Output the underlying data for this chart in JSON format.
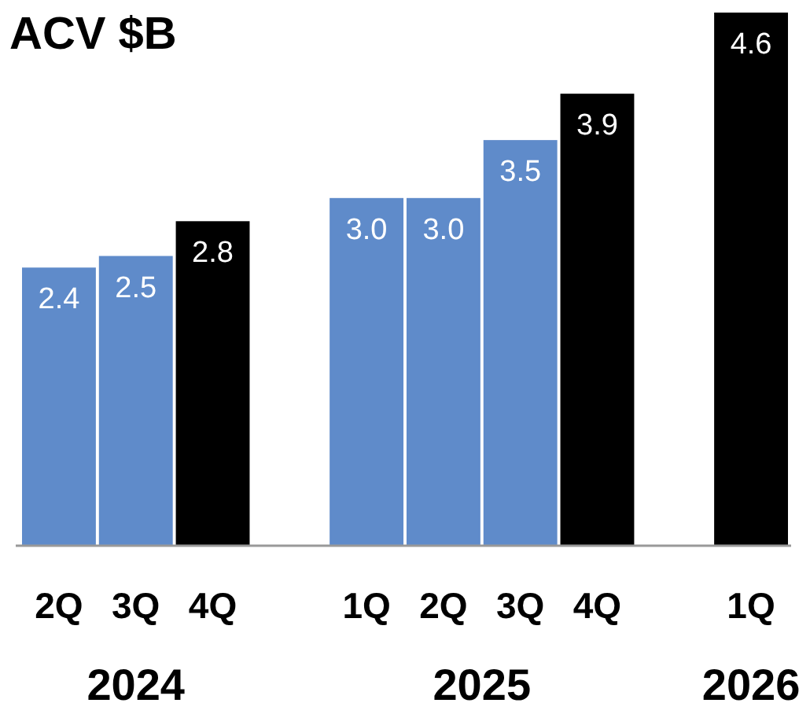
{
  "chart_data": {
    "type": "bar",
    "title": "ACV $B",
    "categories": [
      "2Q",
      "3Q",
      "4Q",
      null,
      "1Q",
      "2Q",
      "3Q",
      "4Q",
      null,
      "1Q"
    ],
    "values": [
      2.4,
      2.5,
      2.8,
      null,
      3.0,
      3.0,
      3.5,
      3.9,
      null,
      4.6
    ],
    "value_labels": [
      "2.4",
      "2.5",
      "2.8",
      null,
      "3.0",
      "3.0",
      "3.5",
      "3.9",
      null,
      "4.6"
    ],
    "colors": [
      "#5f8bca",
      "#5f8bca",
      "#000000",
      null,
      "#5f8bca",
      "#5f8bca",
      "#5f8bca",
      "#000000",
      null,
      "#000000"
    ],
    "annotations": [
      "2024",
      "2025",
      "2026"
    ]
  }
}
